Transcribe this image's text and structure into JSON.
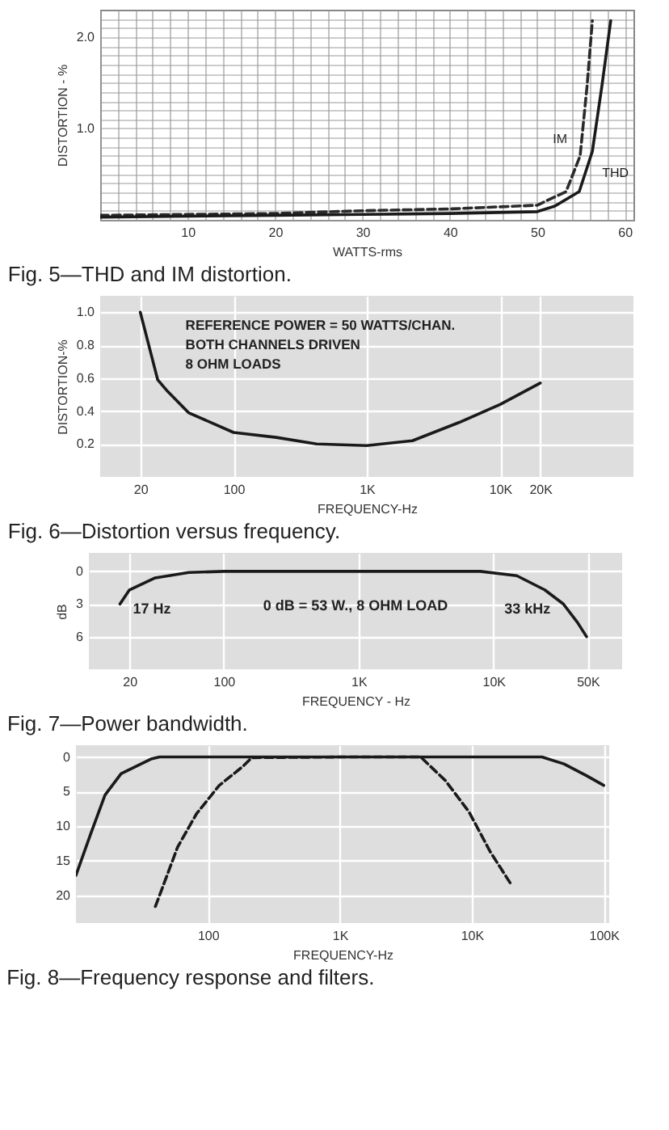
{
  "chart_data": [
    {
      "type": "line",
      "title": "Fig. 5—THD and IM distortion.",
      "xlabel": "WATTS-rms",
      "ylabel": "DISTORTION - %",
      "xlim": [
        0,
        61
      ],
      "ylim": [
        0,
        2.3
      ],
      "xticks": [
        {
          "value": 0,
          "label": null
        },
        {
          "value": 2,
          "label": null
        },
        {
          "value": 4,
          "label": null
        },
        {
          "value": 6,
          "label": null
        },
        {
          "value": 8,
          "label": null
        },
        10,
        {
          "value": 12,
          "label": null
        },
        {
          "value": 14,
          "label": null
        },
        {
          "value": 16,
          "label": null
        },
        {
          "value": 18,
          "label": null
        },
        20,
        {
          "value": 22,
          "label": null
        },
        {
          "value": 24,
          "label": null
        },
        {
          "value": 26,
          "label": null
        },
        {
          "value": 28,
          "label": null
        },
        30,
        {
          "value": 32,
          "label": null
        },
        {
          "value": 34,
          "label": null
        },
        {
          "value": 36,
          "label": null
        },
        {
          "value": 38,
          "label": null
        },
        40,
        {
          "value": 42,
          "label": null
        },
        {
          "value": 44,
          "label": null
        },
        {
          "value": 46,
          "label": null
        },
        {
          "value": 48,
          "label": null
        },
        50,
        {
          "value": 52,
          "label": null
        },
        {
          "value": 54,
          "label": null
        },
        {
          "value": 56,
          "label": null
        },
        {
          "value": 58,
          "label": null
        },
        60
      ],
      "yticks": [
        {
          "value": 0,
          "label": null
        },
        {
          "value": 0.1,
          "label": null
        },
        {
          "value": 0.2,
          "label": null
        },
        {
          "value": 0.3,
          "label": null
        },
        {
          "value": 0.4,
          "label": null
        },
        {
          "value": 0.5,
          "label": null
        },
        {
          "value": 0.6,
          "label": null
        },
        {
          "value": 0.7,
          "label": null
        },
        {
          "value": 0.8,
          "label": null
        },
        {
          "value": 0.9,
          "label": null
        },
        {
          "value": 1,
          "label": "1.0"
        },
        {
          "value": 1.1,
          "label": null
        },
        {
          "value": 1.2,
          "label": null
        },
        {
          "value": 1.3,
          "label": null
        },
        {
          "value": 1.4,
          "label": null
        },
        {
          "value": 1.5,
          "label": null
        },
        {
          "value": 1.6,
          "label": null
        },
        {
          "value": 1.7,
          "label": null
        },
        {
          "value": 1.8,
          "label": null
        },
        {
          "value": 1.9,
          "label": null
        },
        {
          "value": 2,
          "label": "2.0"
        },
        {
          "value": 2.1,
          "label": null
        },
        {
          "value": 2.2,
          "label": null
        }
      ],
      "grid": true,
      "series": [
        {
          "name": "IM",
          "color": "#2a2a2a",
          "line_style": "dashed",
          "x": [
            0,
            10,
            20,
            30,
            40,
            50,
            53.3,
            54.9,
            55.7,
            56.3
          ],
          "values": [
            0.05,
            0.06,
            0.07,
            0.1,
            0.12,
            0.16,
            0.31,
            0.7,
            1.47,
            2.18
          ]
        },
        {
          "name": "THD",
          "color": "#1a1a1a",
          "line_style": "solid",
          "x": [
            0,
            10,
            20,
            30,
            40,
            50,
            52,
            54.8,
            56.3,
            57.4,
            58.4
          ],
          "values": [
            0.03,
            0.04,
            0.05,
            0.06,
            0.07,
            0.09,
            0.15,
            0.31,
            0.75,
            1.47,
            2.18
          ]
        }
      ]
    },
    {
      "type": "line",
      "title": "Fig. 6—Distortion versus frequency.",
      "xlabel": "FREQUENCY-Hz",
      "ylabel": "DISTORTION-%",
      "log": "x",
      "xlim": [
        10,
        100000
      ],
      "ylim": [
        0,
        1.1
      ],
      "xticks": [
        20,
        100,
        {
          "value": 1000,
          "label": "1K"
        },
        {
          "value": 10000,
          "label": "10K"
        },
        {
          "value": 20000,
          "label": "20K"
        }
      ],
      "yticks": [
        0.2,
        0.4,
        0.6,
        0.8,
        {
          "value": 1,
          "label": "1.0"
        }
      ],
      "grid": true,
      "annotations": [
        "REFERENCE POWER = 50 WATTS/CHAN.",
        "BOTH CHANNELS DRIVEN",
        "8 OHM LOADS"
      ],
      "series": [
        {
          "color": "#1a1a1a",
          "line_style": "solid",
          "x": [
            20,
            27,
            32,
            46,
            100,
            209,
            420,
            1000,
            2200,
            4900,
            10000,
            20000
          ],
          "values": [
            1.0,
            0.59,
            0.52,
            0.39,
            0.27,
            0.24,
            0.2,
            0.19,
            0.22,
            0.33,
            0.44,
            0.57
          ]
        }
      ]
    },
    {
      "type": "line",
      "title": "Fig. 7—Power bandwidth.",
      "xlabel": "FREQUENCY - Hz",
      "ylabel": "dB",
      "log": "x",
      "xlim": [
        10,
        90000
      ],
      "ylim": [
        9,
        -1.7
      ],
      "xticks": [
        20,
        100,
        {
          "value": 1000,
          "label": "1K"
        },
        {
          "value": 10000,
          "label": "10K"
        },
        {
          "value": 50000,
          "label": "50K"
        }
      ],
      "yticks": [
        0,
        3,
        6
      ],
      "grid": true,
      "annotations": [
        {
          "text": "17 Hz",
          "x": 17,
          "y": 3
        },
        {
          "text": "33 kHz",
          "x": 33000,
          "y": 3
        },
        "0 dB = 53 W., 8 OHM LOAD"
      ],
      "series": [
        {
          "color": "#1a1a1a",
          "line_style": "solid",
          "x": [
            17,
            20,
            31,
            55,
            100,
            1000,
            8000,
            14900,
            24000,
            33000,
            42000,
            49000
          ],
          "values": [
            3,
            1.7,
            0.6,
            0.1,
            0,
            0,
            0,
            0.4,
            1.7,
            3,
            4.7,
            6
          ]
        }
      ]
    },
    {
      "type": "line",
      "title": "Fig. 8—Frequency response and filters.",
      "xlabel": "FREQUENCY-Hz",
      "log": "x",
      "xlim": [
        10,
        110000
      ],
      "ylim": [
        24,
        -1.7
      ],
      "xticks": [
        100,
        {
          "value": 1000,
          "label": "1K"
        },
        {
          "value": 10000,
          "label": "10K"
        },
        {
          "value": 100000,
          "label": "100K"
        }
      ],
      "yticks": [
        0,
        5,
        10,
        15,
        20
      ],
      "grid": true,
      "series": [
        {
          "color": "#1a1a1a",
          "line_style": "solid",
          "x": [
            10,
            13,
            16.6,
            22,
            37,
            43,
            1000,
            34000,
            50000,
            74000,
            100000
          ],
          "values": [
            17.1,
            11,
            5.5,
            2.4,
            0.3,
            0,
            0,
            0,
            1,
            2.7,
            4.1
          ]
        },
        {
          "color": "#1a1a1a",
          "line_style": "dashed",
          "x": [
            40,
            59,
            82,
            122,
            183,
            215,
            1000,
            4100,
            6300,
            9500,
            13800,
            20000
          ],
          "values": [
            21.6,
            13,
            8.2,
            4.1,
            1.4,
            0.1,
            0,
            0,
            3.4,
            7.9,
            13.7,
            18.5
          ]
        }
      ]
    }
  ]
}
